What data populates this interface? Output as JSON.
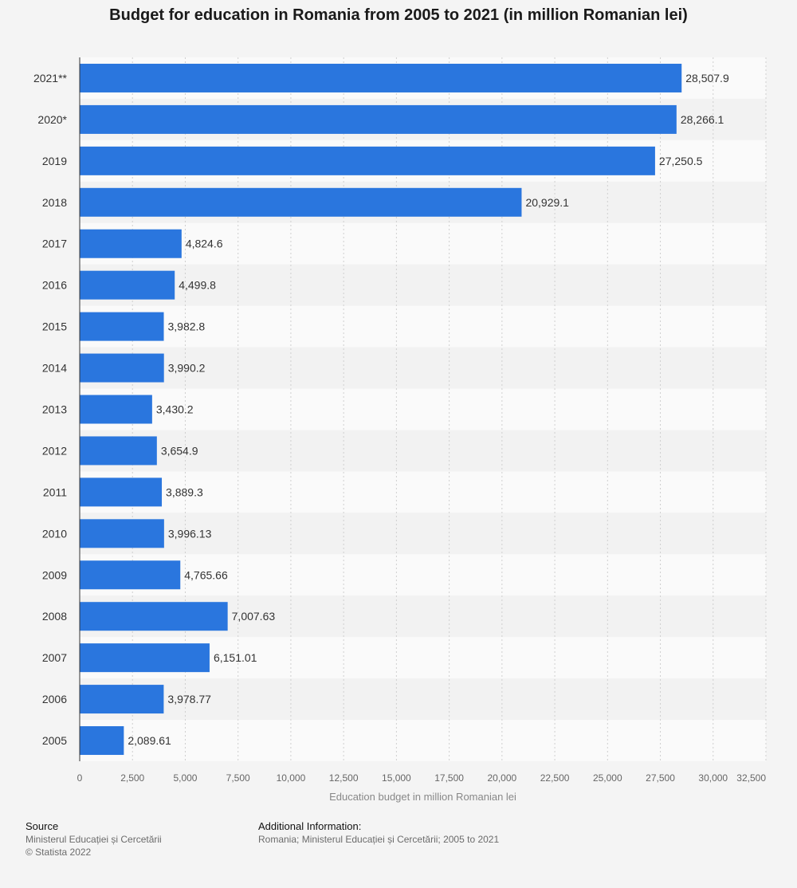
{
  "chart_data": {
    "type": "bar",
    "orientation": "horizontal",
    "title": "Budget for education in Romania from 2005 to 2021 (in million Romanian lei)",
    "xlabel": "Education budget in million Romanian lei",
    "ylabel": "",
    "xlim": [
      0,
      32500
    ],
    "x_ticks": [
      0,
      2500,
      5000,
      7500,
      10000,
      12500,
      15000,
      17500,
      20000,
      22500,
      25000,
      27500,
      30000,
      32500
    ],
    "x_tick_labels": [
      "0",
      "2,500",
      "5,000",
      "7,500",
      "10,000",
      "12,500",
      "15,000",
      "17,500",
      "20,000",
      "22,500",
      "25,000",
      "27,500",
      "30,000",
      "32,500"
    ],
    "grid": true,
    "legend": false,
    "bar_color": "#2a76de",
    "categories": [
      "2021**",
      "2020*",
      "2019",
      "2018",
      "2017",
      "2016",
      "2015",
      "2014",
      "2013",
      "2012",
      "2011",
      "2010",
      "2009",
      "2008",
      "2007",
      "2006",
      "2005"
    ],
    "values": [
      28507.9,
      28266.1,
      27250.5,
      20929.1,
      4824.6,
      4499.8,
      3982.8,
      3990.2,
      3430.2,
      3654.9,
      3889.3,
      3996.13,
      4765.66,
      7007.63,
      6151.01,
      3978.77,
      2089.61
    ],
    "value_labels": [
      "28,507.9",
      "28,266.1",
      "27,250.5",
      "20,929.1",
      "4,824.6",
      "4,499.8",
      "3,982.8",
      "3,990.2",
      "3,430.2",
      "3,654.9",
      "3,889.3",
      "3,996.13",
      "4,765.66",
      "7,007.63",
      "6,151.01",
      "3,978.77",
      "2,089.61"
    ]
  },
  "footer": {
    "source_heading": "Source",
    "source_lines": [
      "Ministerul Educației și Cercetării",
      "© Statista 2022"
    ],
    "info_heading": "Additional Information:",
    "info_line": "Romania; Ministerul Educației și Cercetării; 2005 to 2021"
  }
}
